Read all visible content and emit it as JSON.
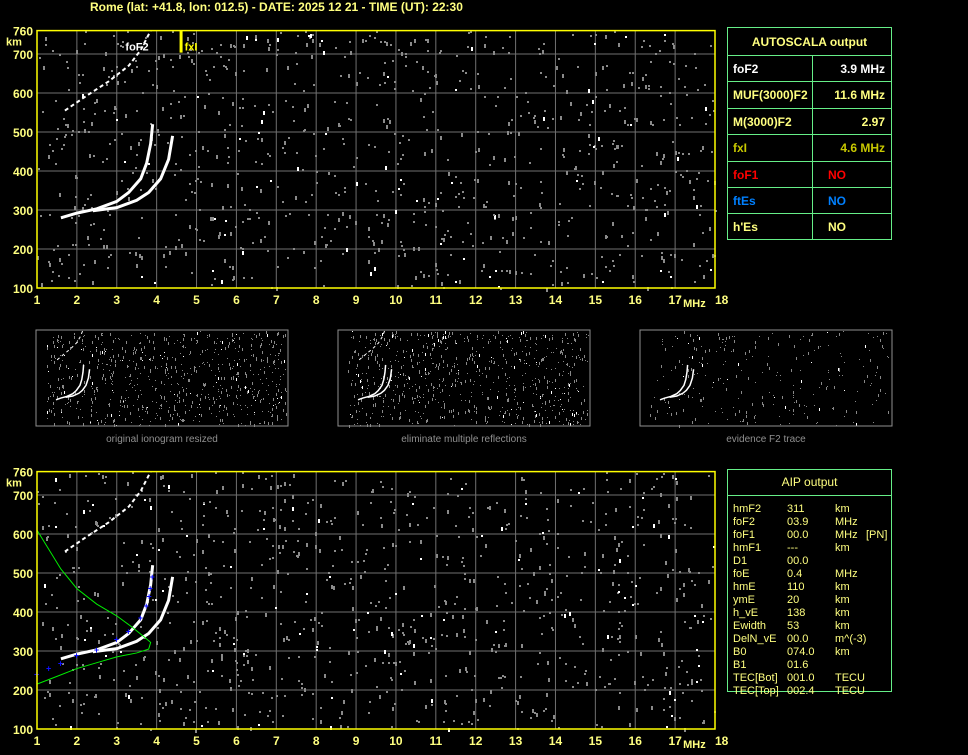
{
  "header": {
    "title": "Rome (lat: +41.8, lon: 012.5) - DATE: 2025 12 21 - TIME (UT): 22:30"
  },
  "colors": {
    "axis": "#ffff00",
    "label": "#ffff80",
    "grid": "#707070",
    "trace": "#ffffff",
    "noise": "#8a8a8a",
    "profile": "#00ee00",
    "fit": "#1010ff",
    "table_border": "#66ee88"
  },
  "chart_data": [
    {
      "type": "scatter",
      "name_label": "ionogram-top",
      "xlabel": "MHz",
      "ylabel": "km",
      "xlim": [
        1,
        18
      ],
      "ylim": [
        100,
        760
      ],
      "xticks": [
        "1",
        "2",
        "3",
        "4",
        "5",
        "6",
        "7",
        "8",
        "9",
        "10",
        "11",
        "12",
        "13",
        "14",
        "15",
        "16",
        "17",
        "18"
      ],
      "yticks": [
        "100",
        "200",
        "300",
        "400",
        "500",
        "600",
        "700",
        "760"
      ],
      "grid": true,
      "annotations": [
        {
          "label": "foF2",
          "x": 3.9,
          "color": "#ffffff"
        },
        {
          "label": "fxI",
          "x": 4.6,
          "color": "#ffff00"
        }
      ],
      "traces": {
        "o_mode": [
          [
            1.6,
            280
          ],
          [
            2,
            292
          ],
          [
            2.5,
            303
          ],
          [
            3,
            322
          ],
          [
            3.3,
            345
          ],
          [
            3.6,
            380
          ],
          [
            3.75,
            420
          ],
          [
            3.85,
            470
          ],
          [
            3.9,
            520
          ]
        ],
        "x_mode": [
          [
            2.4,
            298
          ],
          [
            3,
            306
          ],
          [
            3.5,
            325
          ],
          [
            3.8,
            345
          ],
          [
            4.1,
            380
          ],
          [
            4.3,
            430
          ],
          [
            4.4,
            490
          ]
        ],
        "second_hop": [
          [
            1.7,
            555
          ],
          [
            2.2,
            590
          ],
          [
            2.8,
            630
          ],
          [
            3.3,
            670
          ],
          [
            3.6,
            710
          ],
          [
            3.85,
            760
          ]
        ]
      }
    },
    {
      "type": "scatter",
      "name_label": "ionogram-bottom",
      "xlabel": "MHz",
      "ylabel": "km",
      "xlim": [
        1,
        18
      ],
      "ylim": [
        100,
        760
      ],
      "xticks": [
        "1",
        "2",
        "3",
        "4",
        "5",
        "6",
        "7",
        "8",
        "9",
        "10",
        "11",
        "12",
        "13",
        "14",
        "15",
        "16",
        "17",
        "18"
      ],
      "yticks": [
        "100",
        "200",
        "300",
        "400",
        "500",
        "600",
        "700",
        "760"
      ],
      "grid": true,
      "traces": {
        "o_mode": [
          [
            1.6,
            280
          ],
          [
            2,
            292
          ],
          [
            2.5,
            303
          ],
          [
            3,
            322
          ],
          [
            3.3,
            345
          ],
          [
            3.6,
            380
          ],
          [
            3.75,
            420
          ],
          [
            3.85,
            470
          ],
          [
            3.9,
            520
          ]
        ],
        "x_mode": [
          [
            2.4,
            298
          ],
          [
            3,
            306
          ],
          [
            3.5,
            325
          ],
          [
            3.8,
            345
          ],
          [
            4.1,
            380
          ],
          [
            4.3,
            430
          ],
          [
            4.4,
            490
          ]
        ],
        "second_hop": [
          [
            1.7,
            555
          ],
          [
            2.2,
            590
          ],
          [
            2.8,
            630
          ],
          [
            3.3,
            670
          ],
          [
            3.6,
            710
          ],
          [
            3.85,
            760
          ]
        ]
      },
      "profile": [
        [
          1,
          610
        ],
        [
          1.3,
          560
        ],
        [
          1.6,
          510
        ],
        [
          2,
          460
        ],
        [
          2.5,
          420
        ],
        [
          3,
          390
        ],
        [
          3.4,
          360
        ],
        [
          3.7,
          335
        ],
        [
          3.85,
          322
        ],
        [
          3.8,
          305
        ],
        [
          3.5,
          295
        ],
        [
          3,
          285
        ],
        [
          2.5,
          270
        ],
        [
          2,
          255
        ],
        [
          1.5,
          235
        ],
        [
          1,
          215
        ]
      ],
      "fit": [
        [
          1,
          240
        ],
        [
          1.3,
          255
        ],
        [
          1.6,
          268
        ],
        [
          2,
          288
        ],
        [
          2.5,
          302
        ],
        [
          3,
          330
        ],
        [
          3.3,
          350
        ],
        [
          3.6,
          385
        ],
        [
          3.75,
          415
        ],
        [
          3.82,
          440
        ],
        [
          3.85,
          460
        ],
        [
          3.9,
          490
        ]
      ]
    }
  ],
  "thumbnails": [
    {
      "caption": "original ionogram resized"
    },
    {
      "caption": "eliminate multiple reflections"
    },
    {
      "caption": "evidence F2 trace"
    }
  ],
  "autoscala": {
    "title": "AUTOSCALA output",
    "rows": [
      {
        "key": "foF2",
        "value": "3.9 MHz",
        "color": "#ffffff"
      },
      {
        "key": "MUF(3000)F2",
        "value": "11.6 MHz",
        "color": "#ffff80"
      },
      {
        "key": "M(3000)F2",
        "value": "2.97",
        "color": "#ffff80"
      },
      {
        "key": "fxI",
        "value": "4.6 MHz",
        "color": "#c8c800"
      },
      {
        "key": "foF1",
        "value": "NO",
        "color": "#ff0000"
      },
      {
        "key": "ftEs",
        "value": "NO",
        "color": "#0080ff"
      },
      {
        "key": "h'Es",
        "value": "NO",
        "color": "#ffff80"
      }
    ]
  },
  "aip": {
    "title": "AIP output",
    "rows": [
      {
        "k": "hmF2",
        "v": "311",
        "u": "km",
        "x": ""
      },
      {
        "k": "foF2",
        "v": "03.9",
        "u": "MHz",
        "x": ""
      },
      {
        "k": "foF1",
        "v": "00.0",
        "u": "MHz",
        "x": "[PN]"
      },
      {
        "k": "hmF1",
        "v": "---",
        "u": "km",
        "x": ""
      },
      {
        "k": "D1",
        "v": "00.0",
        "u": "",
        "x": ""
      },
      {
        "k": "foE",
        "v": "0.4",
        "u": "MHz",
        "x": ""
      },
      {
        "k": "hmE",
        "v": "110",
        "u": "km",
        "x": ""
      },
      {
        "k": "ymE",
        "v": "20",
        "u": "km",
        "x": ""
      },
      {
        "k": "h_vE",
        "v": "138",
        "u": "km",
        "x": ""
      },
      {
        "k": "Ewidth",
        "v": "53",
        "u": "km",
        "x": ""
      },
      {
        "k": "DelN_vE",
        "v": "00.0",
        "u": "m^(-3)",
        "x": ""
      },
      {
        "k": "B0",
        "v": "074.0",
        "u": "km",
        "x": ""
      },
      {
        "k": "B1",
        "v": "01.6",
        "u": "",
        "x": ""
      },
      {
        "k": "TEC[Bot]",
        "v": "001.0",
        "u": "TECU",
        "x": ""
      },
      {
        "k": "TEC[Top]",
        "v": "002.4",
        "u": "TECU",
        "x": ""
      }
    ]
  }
}
